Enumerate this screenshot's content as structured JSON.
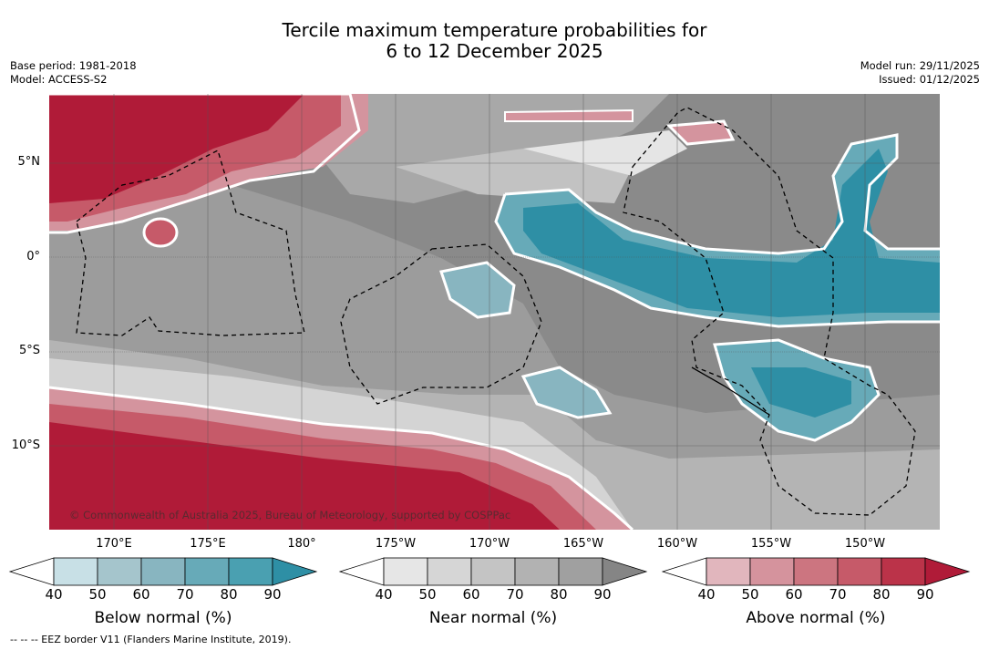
{
  "title": {
    "line1": "Tercile maximum temperature probabilities for",
    "line2": "6 to 12 December 2025"
  },
  "meta": {
    "base_period": "Base period: 1981-2018",
    "model": "Model: ACCESS-S2",
    "model_run": "Model run: 29/11/2025",
    "issued": "Issued: 01/12/2025"
  },
  "axes": {
    "lat_labels": [
      "5°N",
      "0°",
      "5°S",
      "10°S"
    ],
    "lon_labels": [
      "170°E",
      "175°E",
      "180°",
      "175°W",
      "170°W",
      "165°W",
      "160°W",
      "155°W",
      "150°W"
    ]
  },
  "copyright": "© Commonwealth of Australia 2025, Bureau of Meteorology, supported by COSPPac",
  "colorbars": [
    {
      "title": "Below normal (%)",
      "ticks": [
        "40",
        "50",
        "60",
        "70",
        "80",
        "90"
      ],
      "colors": [
        "#ffffff",
        "#c8e0e6",
        "#a5c5cc",
        "#88b5c0",
        "#67aab8",
        "#4aa0b1",
        "#2e8fa5"
      ]
    },
    {
      "title": "Near normal (%)",
      "ticks": [
        "40",
        "50",
        "60",
        "70",
        "80",
        "90"
      ],
      "colors": [
        "#ffffff",
        "#e6e6e6",
        "#d6d6d6",
        "#c4c4c4",
        "#b2b2b2",
        "#a0a0a0",
        "#858585"
      ]
    },
    {
      "title": "Above normal (%)",
      "ticks": [
        "40",
        "50",
        "60",
        "70",
        "80",
        "90"
      ],
      "colors": [
        "#ffffff",
        "#e1b6bd",
        "#d5939d",
        "#cc7580",
        "#c65a69",
        "#bb3349",
        "#b01b38"
      ]
    }
  ],
  "footnote": "--  --  -- EEZ border V11 (Flanders Marine Institute, 2019)."
}
